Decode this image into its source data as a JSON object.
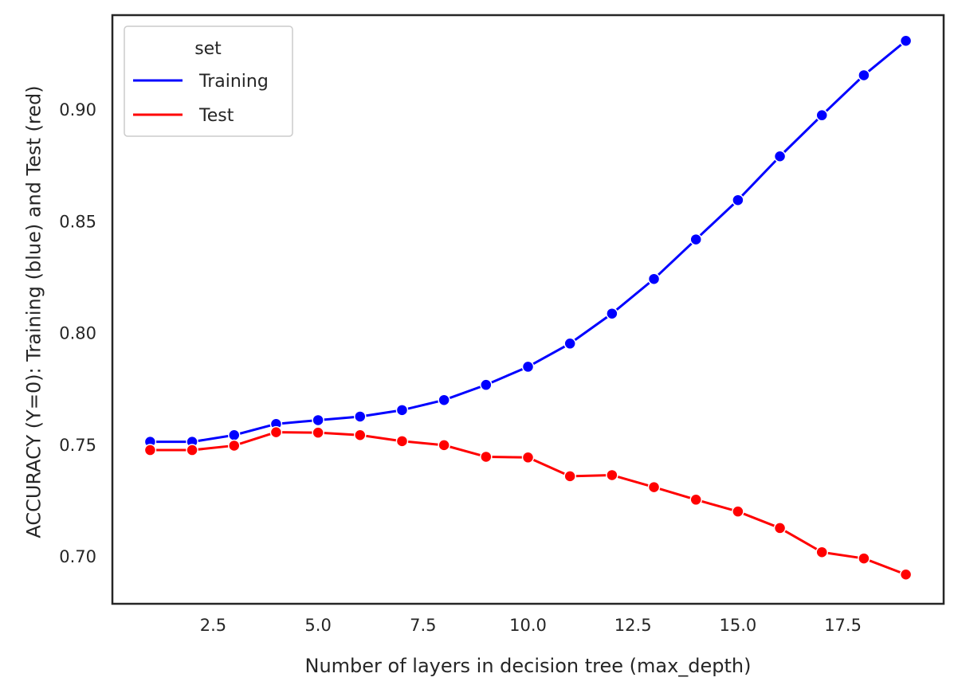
{
  "chart_data": {
    "type": "line",
    "xlabel": "Number of layers in decision tree (max_depth)",
    "ylabel": "ACCURACY (Y=0): Training (blue) and Test (red)",
    "xlim": [
      0.1,
      19.9
    ],
    "ylim": [
      0.679,
      0.9425
    ],
    "x_ticks": [
      2.5,
      5.0,
      7.5,
      10.0,
      12.5,
      15.0,
      17.5
    ],
    "x_tick_labels": [
      "2.5",
      "5.0",
      "7.5",
      "10.0",
      "12.5",
      "15.0",
      "17.5"
    ],
    "y_ticks": [
      0.7,
      0.75,
      0.8,
      0.85,
      0.9
    ],
    "y_tick_labels": [
      "0.70",
      "0.75",
      "0.80",
      "0.85",
      "0.90"
    ],
    "grid": false,
    "legend": {
      "title": "set",
      "position": "top-left",
      "entries": [
        "Training",
        "Test"
      ]
    },
    "x": [
      1,
      2,
      3,
      4,
      5,
      6,
      7,
      8,
      9,
      10,
      11,
      12,
      13,
      14,
      15,
      16,
      17,
      18,
      19
    ],
    "series": [
      {
        "name": "Training",
        "color": "#0000ff",
        "values": [
          0.7515,
          0.7515,
          0.7545,
          0.7595,
          0.7612,
          0.7628,
          0.7657,
          0.7702,
          0.777,
          0.7851,
          0.7955,
          0.8089,
          0.8244,
          0.8421,
          0.8597,
          0.8793,
          0.8977,
          0.9156,
          0.931
        ]
      },
      {
        "name": "Test",
        "color": "#ff0000",
        "values": [
          0.7478,
          0.7478,
          0.7498,
          0.7558,
          0.7556,
          0.7545,
          0.7518,
          0.75,
          0.7448,
          0.7445,
          0.7361,
          0.7366,
          0.7312,
          0.7256,
          0.7203,
          0.7129,
          0.7021,
          0.6993,
          0.6921
        ]
      }
    ]
  }
}
